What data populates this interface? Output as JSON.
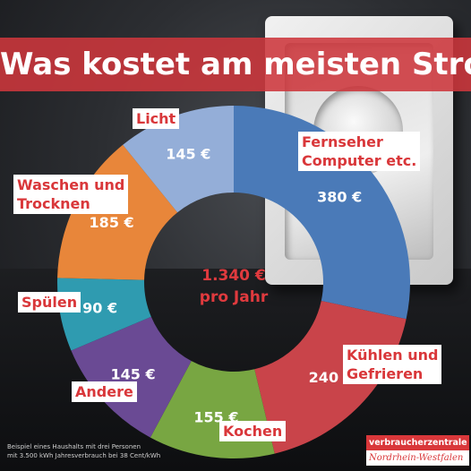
{
  "title": "Was kostet am meisten Strom?",
  "center": {
    "line1": "1.340 €",
    "line2": "pro Jahr"
  },
  "footnote": {
    "line1": "Beispiel eines Haushalts mit drei Personen",
    "line2": "mit 3.500 kWh Jahresverbrauch bei 38 Cent/kWh"
  },
  "brand": {
    "name": "verbraucherzentrale",
    "region": "Nordrhein-Westfalen"
  },
  "colors": {
    "accent": "#d9373a"
  },
  "chart_data": {
    "type": "pie",
    "donut": true,
    "total": 1340,
    "unit": "€",
    "slices": [
      {
        "label": [
          "Fernseher",
          "Computer etc."
        ],
        "value": 380,
        "value_label": "380 €",
        "color": "#4a7ab8"
      },
      {
        "label": [
          "Kühlen und",
          "Gefrieren"
        ],
        "value": 240,
        "value_label": "240 €",
        "color": "#c9444a"
      },
      {
        "label": [
          "Kochen"
        ],
        "value": 155,
        "value_label": "155 €",
        "color": "#78a642"
      },
      {
        "label": [
          "Andere"
        ],
        "value": 145,
        "value_label": "145 €",
        "color": "#6a4a94"
      },
      {
        "label": [
          "Spülen"
        ],
        "value": 90,
        "value_label": "90 €",
        "color": "#2f9bb0"
      },
      {
        "label": [
          "Waschen und",
          "Trocknen"
        ],
        "value": 185,
        "value_label": "185 €",
        "color": "#e8863a"
      },
      {
        "label": [
          "Licht"
        ],
        "value": 145,
        "value_label": "145 €",
        "color": "#94aed8"
      }
    ]
  }
}
